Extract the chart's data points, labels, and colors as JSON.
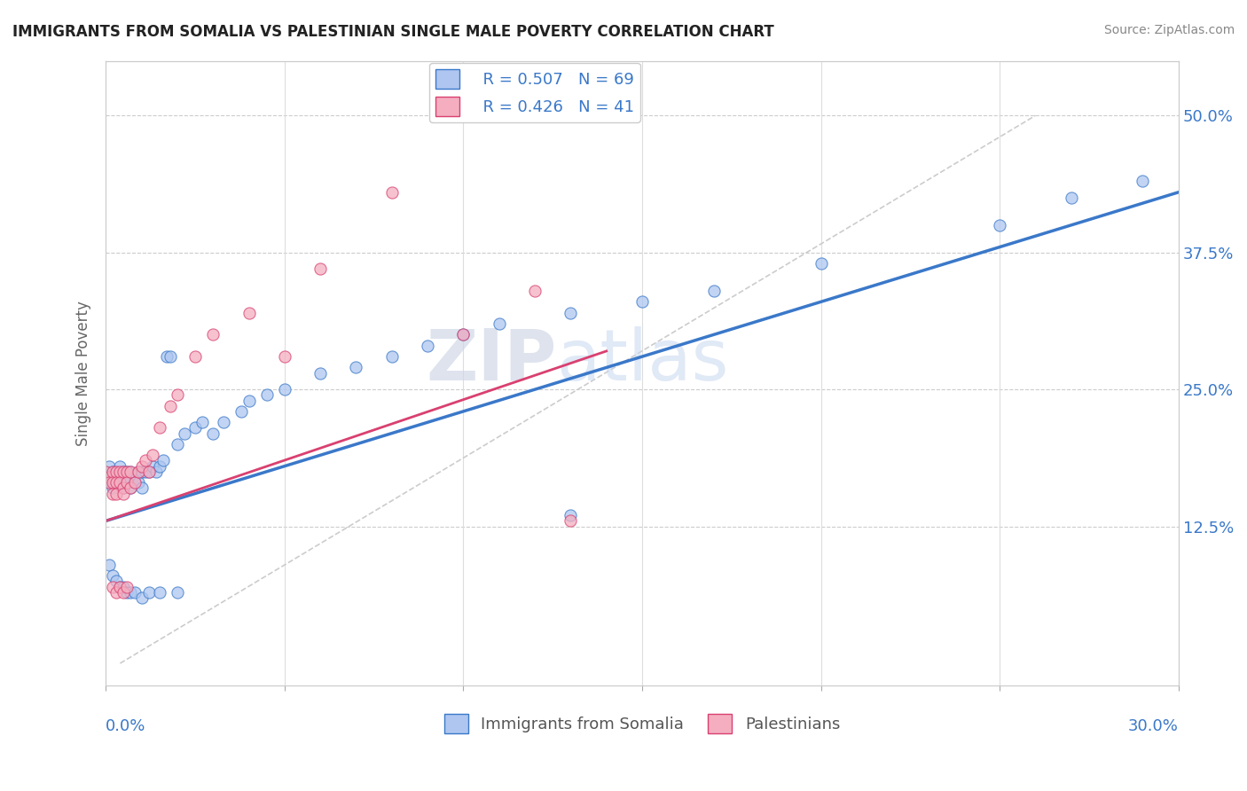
{
  "title": "IMMIGRANTS FROM SOMALIA VS PALESTINIAN SINGLE MALE POVERTY CORRELATION CHART",
  "source": "Source: ZipAtlas.com",
  "ylabel": "Single Male Poverty",
  "yticks": [
    "12.5%",
    "25.0%",
    "37.5%",
    "50.0%"
  ],
  "ytick_vals": [
    0.125,
    0.25,
    0.375,
    0.5
  ],
  "xlim": [
    0.0,
    0.3
  ],
  "ylim": [
    -0.02,
    0.55
  ],
  "legend_somalia_R": "R = 0.507",
  "legend_somalia_N": "N = 69",
  "legend_pal_R": "R = 0.426",
  "legend_pal_N": "N = 41",
  "somalia_color": "#aec6f0",
  "somalia_line_color": "#3a78c9",
  "pal_color": "#f4aec0",
  "pal_line_color": "#d94070",
  "watermark_zip": "ZIP",
  "watermark_atlas": "atlas",
  "somalia_x": [
    0.0,
    0.001,
    0.001,
    0.001,
    0.002,
    0.002,
    0.002,
    0.003,
    0.003,
    0.003,
    0.004,
    0.004,
    0.005,
    0.005,
    0.005,
    0.006,
    0.006,
    0.007,
    0.007,
    0.008,
    0.008,
    0.009,
    0.009,
    0.01,
    0.01,
    0.011,
    0.012,
    0.013,
    0.014,
    0.015,
    0.016,
    0.017,
    0.018,
    0.02,
    0.022,
    0.025,
    0.027,
    0.03,
    0.033,
    0.038,
    0.04,
    0.045,
    0.05,
    0.06,
    0.07,
    0.08,
    0.09,
    0.1,
    0.11,
    0.13,
    0.15,
    0.17,
    0.2,
    0.25,
    0.27,
    0.001,
    0.002,
    0.003,
    0.004,
    0.005,
    0.006,
    0.007,
    0.008,
    0.01,
    0.012,
    0.015,
    0.02,
    0.13,
    0.29
  ],
  "somalia_y": [
    0.175,
    0.17,
    0.165,
    0.18,
    0.175,
    0.17,
    0.16,
    0.175,
    0.165,
    0.17,
    0.18,
    0.165,
    0.175,
    0.16,
    0.17,
    0.175,
    0.165,
    0.175,
    0.16,
    0.17,
    0.165,
    0.175,
    0.165,
    0.175,
    0.16,
    0.175,
    0.175,
    0.18,
    0.175,
    0.18,
    0.185,
    0.28,
    0.28,
    0.2,
    0.21,
    0.215,
    0.22,
    0.21,
    0.22,
    0.23,
    0.24,
    0.245,
    0.25,
    0.265,
    0.27,
    0.28,
    0.29,
    0.3,
    0.31,
    0.32,
    0.33,
    0.34,
    0.365,
    0.4,
    0.425,
    0.09,
    0.08,
    0.075,
    0.07,
    0.07,
    0.065,
    0.065,
    0.065,
    0.06,
    0.065,
    0.065,
    0.065,
    0.135,
    0.44
  ],
  "pal_x": [
    0.0,
    0.001,
    0.001,
    0.002,
    0.002,
    0.002,
    0.003,
    0.003,
    0.003,
    0.004,
    0.004,
    0.005,
    0.005,
    0.005,
    0.006,
    0.006,
    0.007,
    0.007,
    0.008,
    0.009,
    0.01,
    0.011,
    0.012,
    0.013,
    0.015,
    0.018,
    0.02,
    0.025,
    0.03,
    0.04,
    0.05,
    0.06,
    0.08,
    0.1,
    0.12,
    0.002,
    0.003,
    0.004,
    0.005,
    0.006,
    0.13
  ],
  "pal_y": [
    0.175,
    0.17,
    0.165,
    0.175,
    0.165,
    0.155,
    0.175,
    0.165,
    0.155,
    0.175,
    0.165,
    0.175,
    0.16,
    0.155,
    0.175,
    0.165,
    0.175,
    0.16,
    0.165,
    0.175,
    0.18,
    0.185,
    0.175,
    0.19,
    0.215,
    0.235,
    0.245,
    0.28,
    0.3,
    0.32,
    0.28,
    0.36,
    0.43,
    0.3,
    0.34,
    0.07,
    0.065,
    0.07,
    0.065,
    0.07,
    0.13
  ],
  "ref_line_x": [
    0.004,
    0.26
  ],
  "ref_line_y": [
    0.0,
    0.5
  ]
}
